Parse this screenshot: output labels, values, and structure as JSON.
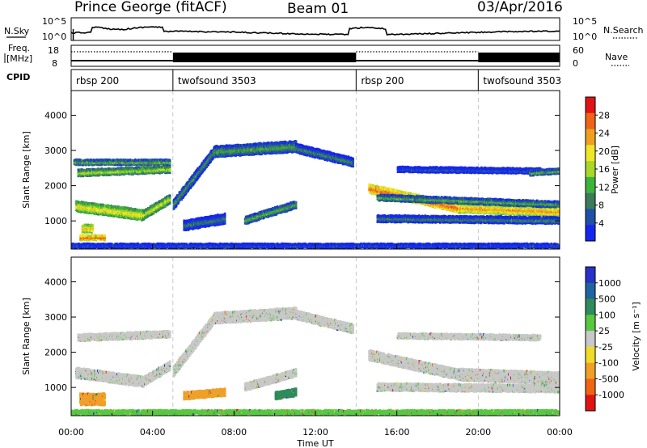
{
  "header": {
    "station": "Prince George (fitACF)",
    "beam": "Beam 01",
    "date": "03/Apr/2016"
  },
  "top_panels": {
    "nsky_label": "N.Sky",
    "nsky_ticks": [
      "10^5",
      "10^0"
    ],
    "nsearch_label": "N.Search",
    "nsearch_ticks": [
      "10^5",
      "10^0"
    ],
    "freq_label_1": "Freq.",
    "freq_label_2": "[MHz]",
    "freq_ticks": [
      "18",
      "8"
    ],
    "nave_label": "Nave",
    "nave_ticks": [
      "60",
      "0"
    ],
    "cpid_label": "CPID",
    "cpid_segments": [
      {
        "name": "rbsp 200",
        "start_h": 0,
        "end_h": 5
      },
      {
        "name": "twofsound 3503",
        "start_h": 5,
        "end_h": 14
      },
      {
        "name": "rbsp 200",
        "start_h": 14,
        "end_h": 20
      },
      {
        "name": "twofsound 3503",
        "start_h": 20,
        "end_h": 24
      }
    ]
  },
  "chart_data": [
    {
      "type": "heatmap",
      "name": "power",
      "ylabel": "Slant Range [km]",
      "xlim": [
        0,
        24
      ],
      "ylim": [
        200,
        4700
      ],
      "yticks": [
        "1000",
        "2000",
        "3000",
        "4000"
      ],
      "colorbar_label": "Power [dB]",
      "colorbar_ticks": [
        "4",
        "8",
        "12",
        "16",
        "20",
        "24",
        "28"
      ],
      "colorbar_range": [
        0,
        32
      ],
      "colors": [
        "#1426f0",
        "#1e50a8",
        "#3c7a5a",
        "#3cb43c",
        "#a8d828",
        "#f0e628",
        "#f0a020",
        "#f06418",
        "#e01414"
      ],
      "bands": [
        {
          "t0": 0.2,
          "t1": 3.5,
          "r0": 1450,
          "r1": 1200,
          "w": 260,
          "v": 20
        },
        {
          "t0": 3.5,
          "t1": 4.8,
          "r0": 1200,
          "r1": 1650,
          "w": 220,
          "v": 18
        },
        {
          "t0": 0.3,
          "t1": 4.8,
          "r0": 2400,
          "r1": 2500,
          "w": 160,
          "v": 17
        },
        {
          "t0": 0.1,
          "t1": 4.8,
          "r0": 2700,
          "r1": 2700,
          "w": 120,
          "v": 14
        },
        {
          "t0": 0.4,
          "t1": 1.6,
          "r0": 560,
          "r1": 560,
          "w": 110,
          "v": 27
        },
        {
          "t0": 0.5,
          "t1": 1.0,
          "r0": 820,
          "r1": 820,
          "w": 180,
          "v": 23
        },
        {
          "t0": 5.0,
          "t1": 7.0,
          "r0": 1500,
          "r1": 3000,
          "w": 250,
          "v": 11
        },
        {
          "t0": 7.0,
          "t1": 11.0,
          "r0": 3000,
          "r1": 3150,
          "w": 280,
          "v": 12
        },
        {
          "t0": 11.0,
          "t1": 13.8,
          "r0": 3100,
          "r1": 2700,
          "w": 220,
          "v": 10
        },
        {
          "t0": 5.5,
          "t1": 7.5,
          "r0": 900,
          "r1": 1100,
          "w": 250,
          "v": 9
        },
        {
          "t0": 8.5,
          "t1": 11.0,
          "r0": 1050,
          "r1": 1500,
          "w": 180,
          "v": 13
        },
        {
          "t0": 14.6,
          "t1": 19.0,
          "r0": 1950,
          "r1": 1400,
          "w": 220,
          "v": 27
        },
        {
          "t0": 19.0,
          "t1": 24.0,
          "r0": 1400,
          "r1": 1300,
          "w": 230,
          "v": 24
        },
        {
          "t0": 15.0,
          "t1": 24.0,
          "r0": 1700,
          "r1": 1500,
          "w": 140,
          "v": 13
        },
        {
          "t0": 15.0,
          "t1": 24.0,
          "r0": 1100,
          "r1": 1050,
          "w": 160,
          "v": 10
        },
        {
          "t0": 16.0,
          "t1": 23.0,
          "r0": 2500,
          "r1": 2450,
          "w": 120,
          "v": 7
        },
        {
          "t0": 22.5,
          "t1": 24.0,
          "r0": 2400,
          "r1": 2450,
          "w": 120,
          "v": 13
        },
        {
          "t0": 0.0,
          "t1": 24.0,
          "r0": 330,
          "r1": 330,
          "w": 90,
          "v": 6
        }
      ]
    },
    {
      "type": "heatmap",
      "name": "velocity",
      "ylabel": "Slant Range [km]",
      "xlabel": "Time UT",
      "xlim": [
        0,
        24
      ],
      "ylim": [
        200,
        4700
      ],
      "yticks": [
        "1000",
        "2000",
        "3000",
        "4000"
      ],
      "xticks": [
        "00:00",
        "04:00",
        "08:00",
        "12:00",
        "16:00",
        "20:00",
        "00:00"
      ],
      "colorbar_label": "Velocity [m s⁻¹]",
      "colorbar_ticks": [
        "1000",
        "500",
        "100",
        "25",
        "-25",
        "-100",
        "-500",
        "-1000"
      ],
      "colors": [
        "#2832c8",
        "#1e64a0",
        "#2e8c5a",
        "#58c840",
        "#c8c8c8",
        "#f0dc28",
        "#f0a028",
        "#f06414",
        "#e01414"
      ],
      "bands": [
        {
          "t0": 0.2,
          "t1": 3.5,
          "r0": 1450,
          "r1": 1200,
          "w": 260,
          "c": 4
        },
        {
          "t0": 3.5,
          "t1": 4.8,
          "r0": 1200,
          "r1": 1650,
          "w": 220,
          "c": 4
        },
        {
          "t0": 0.3,
          "t1": 4.8,
          "r0": 2450,
          "r1": 2550,
          "w": 160,
          "c": 4
        },
        {
          "t0": 0.4,
          "t1": 1.6,
          "r0": 700,
          "r1": 700,
          "w": 300,
          "c": 6
        },
        {
          "t0": 5.0,
          "t1": 7.0,
          "r0": 1500,
          "r1": 3000,
          "w": 250,
          "c": 4
        },
        {
          "t0": 7.0,
          "t1": 11.0,
          "r0": 3000,
          "r1": 3150,
          "w": 280,
          "c": 4
        },
        {
          "t0": 11.0,
          "t1": 13.8,
          "r0": 3100,
          "r1": 2700,
          "w": 220,
          "c": 4
        },
        {
          "t0": 5.5,
          "t1": 7.5,
          "r0": 800,
          "r1": 900,
          "w": 180,
          "c": 6
        },
        {
          "t0": 8.5,
          "t1": 11.0,
          "r0": 1050,
          "r1": 1450,
          "w": 180,
          "c": 4
        },
        {
          "t0": 10.0,
          "t1": 11.0,
          "r0": 800,
          "r1": 900,
          "w": 180,
          "c": 2
        },
        {
          "t0": 14.6,
          "t1": 19.0,
          "r0": 1950,
          "r1": 1400,
          "w": 260,
          "c": 4
        },
        {
          "t0": 19.0,
          "t1": 24.0,
          "r0": 1400,
          "r1": 1300,
          "w": 300,
          "c": 4
        },
        {
          "t0": 15.0,
          "t1": 24.0,
          "r0": 1050,
          "r1": 1000,
          "w": 180,
          "c": 4
        },
        {
          "t0": 16.0,
          "t1": 23.0,
          "r0": 2500,
          "r1": 2450,
          "w": 120,
          "c": 4
        },
        {
          "t0": 0.0,
          "t1": 24.0,
          "r0": 330,
          "r1": 330,
          "w": 90,
          "c": 3
        }
      ]
    }
  ]
}
